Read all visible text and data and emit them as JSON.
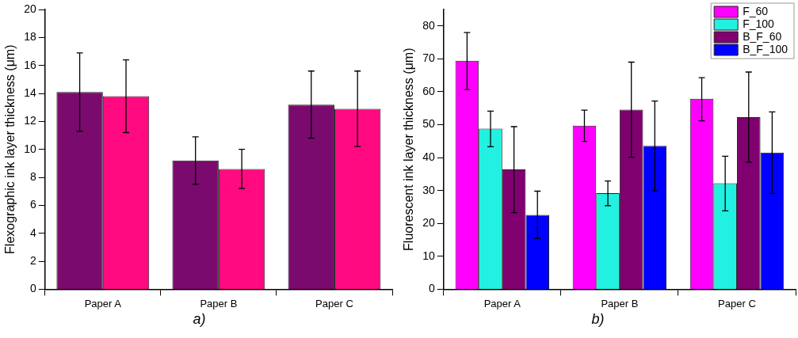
{
  "chart_data": [
    {
      "type": "bar",
      "categories": [
        "Paper A",
        "Paper B",
        "Paper C"
      ],
      "ylabel": "Flexographic ink layer thickness (μm)",
      "ylim": [
        0,
        20
      ],
      "yticks": [
        0,
        2,
        4,
        6,
        8,
        10,
        12,
        14,
        16,
        18,
        20
      ],
      "grid": false,
      "legend": false,
      "annotations": [
        "a)"
      ],
      "series": [
        {
          "color": "#7b0a6e",
          "values": [
            14.1,
            9.2,
            13.2
          ],
          "errors": [
            [
              11.3,
              16.9
            ],
            [
              7.5,
              10.9
            ],
            [
              10.8,
              15.6
            ]
          ]
        },
        {
          "color": "#ff0a80",
          "values": [
            13.8,
            8.6,
            12.9
          ],
          "errors": [
            [
              11.2,
              16.4
            ],
            [
              7.2,
              10.0
            ],
            [
              10.2,
              15.6
            ]
          ]
        }
      ]
    },
    {
      "type": "bar",
      "categories": [
        "Paper A",
        "Paper B",
        "Paper C"
      ],
      "ylabel": "Fluorescent ink layer thickness (μm)",
      "ylim": [
        0,
        85
      ],
      "yticks": [
        0,
        10,
        20,
        30,
        40,
        50,
        60,
        70,
        80
      ],
      "grid": false,
      "legend": "top right",
      "annotations": [
        "b)"
      ],
      "series": [
        {
          "name": "F_60",
          "color": "#ff00ff",
          "values": [
            69.4,
            49.7,
            57.9
          ],
          "errors": [
            [
              60.7,
              78
            ],
            [
              44.9,
              54.4
            ],
            [
              51.2,
              64.3
            ]
          ]
        },
        {
          "name": "F_100",
          "color": "#22f0e0",
          "values": [
            48.8,
            29.2,
            32.2
          ],
          "errors": [
            [
              43.3,
              54.1
            ],
            [
              25.4,
              32.9
            ],
            [
              23.8,
              40.4
            ]
          ]
        },
        {
          "name": "B_F_60",
          "color": "#800070",
          "values": [
            36.4,
            54.6,
            52.3
          ],
          "errors": [
            [
              23.3,
              49.4
            ],
            [
              40.1,
              69
            ],
            [
              38.6,
              66
            ]
          ]
        },
        {
          "name": "B_F_100",
          "color": "#0000ff",
          "values": [
            22.6,
            43.6,
            41.5
          ],
          "errors": [
            [
              15.4,
              29.8
            ],
            [
              29.9,
              57.2
            ],
            [
              29.1,
              53.9
            ]
          ]
        }
      ]
    }
  ]
}
